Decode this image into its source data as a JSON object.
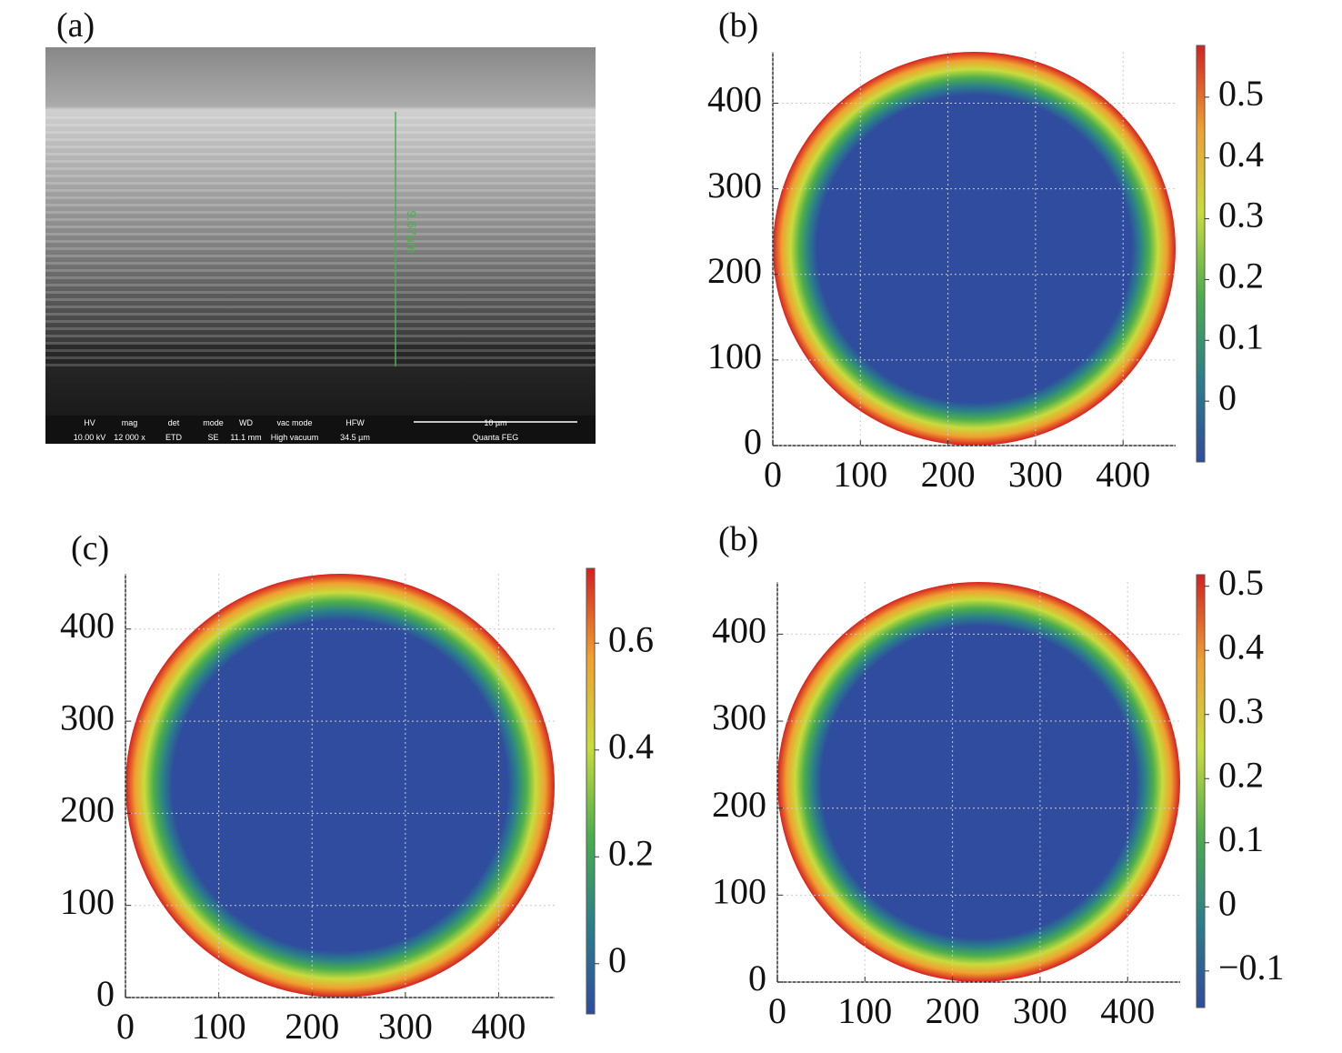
{
  "chart_data": [
    {
      "type": "image",
      "label": "(a)",
      "measurement": "9.67µm",
      "info_bar": [
        [
          "HV",
          "10.00 kV"
        ],
        [
          "mag",
          "12 000 x"
        ],
        [
          "det",
          "ETD"
        ],
        [
          "mode",
          "SE"
        ],
        [
          "WD",
          "11.1 mm"
        ],
        [
          "vac mode",
          "High vacuum"
        ],
        [
          "HFW",
          "34.5 µm"
        ]
      ],
      "scale_bar": "10 µm",
      "instrument": "Quanta FEG"
    },
    {
      "type": "heatmap",
      "label": "(b)",
      "xlim": [
        0,
        460
      ],
      "ylim": [
        0,
        460
      ],
      "xticks": [
        0,
        100,
        200,
        300,
        400
      ],
      "yticks": [
        0,
        100,
        200,
        300,
        400
      ],
      "grid": true,
      "clim": [
        -0.1,
        0.585
      ],
      "cticks": [
        0,
        0.1,
        0.2,
        0.3,
        0.4,
        0.5
      ],
      "colors": [
        "#2f4c9e",
        "#2a7f8a",
        "#4cae4c",
        "#c8dc3c",
        "#f0a030",
        "#d62020"
      ]
    },
    {
      "type": "heatmap",
      "label": "(c)",
      "xlim": [
        0,
        460
      ],
      "ylim": [
        0,
        460
      ],
      "xticks": [
        0,
        100,
        200,
        300,
        400
      ],
      "yticks": [
        0,
        100,
        200,
        300,
        400
      ],
      "grid": true,
      "clim": [
        -0.094,
        0.74
      ],
      "cticks": [
        0,
        0.2,
        0.4,
        0.6
      ],
      "colors": [
        "#2f4c9e",
        "#2a7f8a",
        "#4cae4c",
        "#c8dc3c",
        "#f0a030",
        "#d62020"
      ]
    },
    {
      "type": "heatmap",
      "label": "(b)",
      "xlim": [
        0,
        460
      ],
      "ylim": [
        0,
        460
      ],
      "xticks": [
        0,
        100,
        200,
        300,
        400
      ],
      "yticks": [
        0,
        100,
        200,
        300,
        400
      ],
      "grid": true,
      "clim": [
        -0.157,
        0.518
      ],
      "cticks": [
        {
          "value": -0.1,
          "label": "−0.1"
        },
        0,
        0.1,
        0.2,
        0.3,
        0.4,
        0.5
      ],
      "colors": [
        "#2f4c9e",
        "#2a7f8a",
        "#4cae4c",
        "#c8dc3c",
        "#f0a030",
        "#d62020"
      ]
    }
  ]
}
